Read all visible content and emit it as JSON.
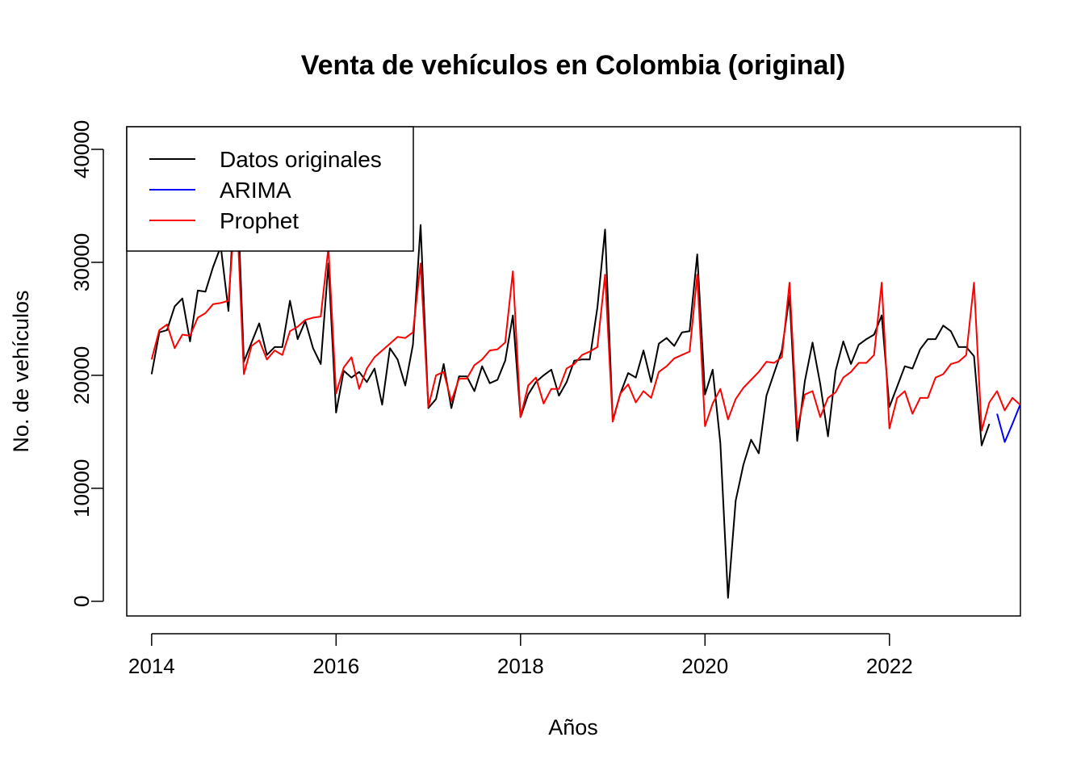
{
  "chart_data": {
    "type": "line",
    "title": "Venta de vehículos en Colombia (original)",
    "xlabel": "Años",
    "ylabel": "No. de vehículos",
    "xlim": [
      2013.73,
      2023.42
    ],
    "ylim": [
      -1300,
      42000
    ],
    "x_ticks": [
      2014,
      2016,
      2018,
      2020,
      2022
    ],
    "y_ticks": [
      0,
      10000,
      20000,
      30000,
      40000
    ],
    "grid": false,
    "legend_position": "top-left",
    "series": [
      {
        "name": "Datos originales",
        "color": "#000000",
        "start": 2014.0,
        "step": 0.08333,
        "values": [
          20100,
          23800,
          24000,
          26100,
          26800,
          23000,
          27500,
          27400,
          29600,
          31400,
          25700,
          39000,
          21200,
          22900,
          24600,
          21800,
          22500,
          22500,
          26600,
          23200,
          24800,
          22400,
          21000,
          29900,
          16700,
          20400,
          19800,
          20300,
          19400,
          20600,
          17400,
          22400,
          21400,
          19100,
          22700,
          33300,
          17100,
          17900,
          21000,
          17100,
          19900,
          19900,
          18600,
          20800,
          19300,
          19600,
          21300,
          25300,
          16300,
          18300,
          19400,
          20000,
          20500,
          18200,
          19400,
          21300,
          21400,
          21400,
          26000,
          32900,
          16000,
          18400,
          20200,
          19800,
          22200,
          19400,
          22800,
          23300,
          22600,
          23800,
          23900,
          30700,
          18300,
          20500,
          14000,
          300,
          8900,
          12100,
          14300,
          13100,
          18200,
          20200,
          22200,
          27000,
          14200,
          19500,
          22900,
          19200,
          14600,
          20400,
          23000,
          21000,
          22700,
          23200,
          23600,
          25300,
          17200,
          19000,
          20800,
          20600,
          22300,
          23200,
          23200,
          24400,
          23900,
          22500,
          22500,
          21700,
          13800,
          15700
        ]
      },
      {
        "name": "ARIMA",
        "color": "#0000ff",
        "start": 2023.167,
        "step": 0.08333,
        "values": [
          16600,
          14100,
          15700,
          17400
        ]
      },
      {
        "name": "Prophet",
        "color": "#ff0000",
        "start": 2014.0,
        "step": 0.08333,
        "values": [
          21400,
          24000,
          24500,
          22400,
          23600,
          23500,
          25100,
          25500,
          26300,
          26400,
          26600,
          35800,
          20100,
          22600,
          23100,
          21400,
          22200,
          21800,
          23900,
          24300,
          24900,
          25100,
          25200,
          31300,
          18400,
          20700,
          21600,
          18800,
          20600,
          21600,
          22200,
          22800,
          23400,
          23300,
          23800,
          29900,
          17200,
          20000,
          20300,
          17700,
          19700,
          19700,
          20900,
          21400,
          22200,
          22300,
          22900,
          29200,
          16300,
          19100,
          19800,
          17500,
          18800,
          18800,
          20600,
          21000,
          21800,
          22100,
          22500,
          28900,
          15900,
          18400,
          19200,
          17600,
          18600,
          18000,
          20300,
          20800,
          21500,
          21800,
          22100,
          28900,
          15500,
          17500,
          18800,
          16100,
          17900,
          18900,
          19600,
          20300,
          21200,
          21100,
          21600,
          28200,
          15300,
          18300,
          18600,
          16300,
          18000,
          18500,
          19800,
          20300,
          21100,
          21100,
          21800,
          28200,
          15300,
          18000,
          18600,
          16600,
          18000,
          18000,
          19800,
          20100,
          21000,
          21200,
          21800,
          28200,
          15100,
          17600,
          18600,
          16900,
          18000,
          17400,
          18400
        ]
      }
    ]
  }
}
